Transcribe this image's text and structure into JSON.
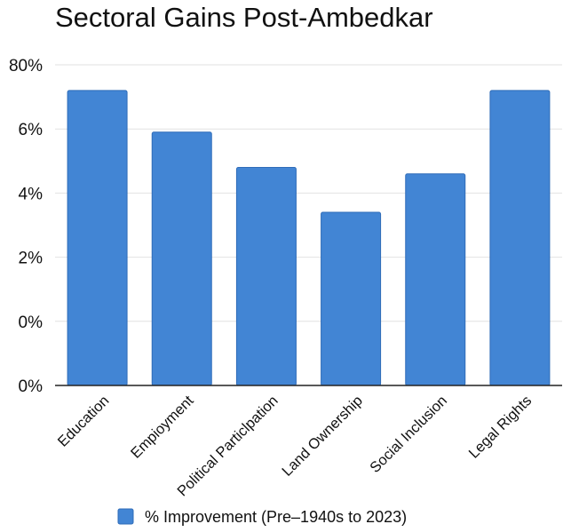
{
  "chart_data": {
    "type": "bar",
    "title": "Sectoral Gains Post-Ambedkar",
    "categories": [
      "Education",
      "Empioyment",
      "Political Particlpation",
      "Land Ownership",
      "Social Inclusion",
      "Legal Rights"
    ],
    "series": [
      {
        "name": "% Improvement (Pre–1940s to 2023)",
        "values": [
          7.2,
          5.9,
          4.8,
          3.4,
          4.6,
          7.2
        ]
      }
    ],
    "y_tick_labels": [
      "0%",
      "0%",
      "2%",
      "4%",
      "6%",
      "80%"
    ],
    "xlabel": "",
    "ylabel": "",
    "ylim": [
      -2,
      8
    ],
    "grid": true,
    "legend_position": "bottom",
    "colors": {
      "bar": "#4285d4",
      "bar_edge": "#2f6cb8",
      "grid": "#e2e2e2",
      "axis": "#222222"
    }
  }
}
